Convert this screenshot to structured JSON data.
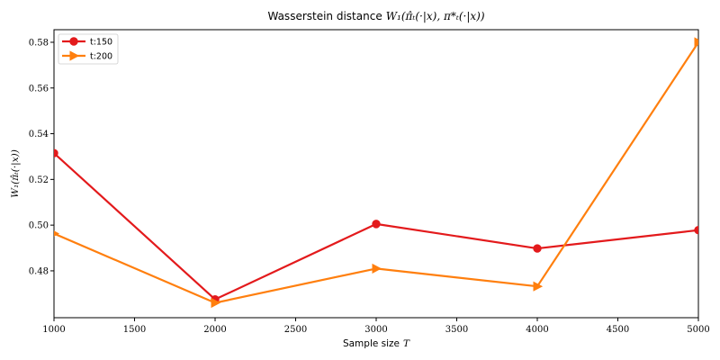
{
  "chart_data": {
    "type": "line",
    "title": "Wasserstein distance",
    "title_math": "W₁(π̂ₜ(·|x), π*ₜ(·|x))",
    "xlabel": "Sample size",
    "xlabel_math": "T",
    "ylabel": "W₁(π̂ₜ(·|x))",
    "x": [
      1000,
      2000,
      3000,
      4000,
      5000
    ],
    "xlim": [
      1000,
      5000
    ],
    "ylim": [
      0.4595,
      0.5855
    ],
    "xticks": [
      1000,
      1500,
      2000,
      2500,
      3000,
      3500,
      4000,
      4500,
      5000
    ],
    "yticks": [
      0.48,
      0.5,
      0.52,
      0.54,
      0.56,
      0.58
    ],
    "grid": false,
    "legend_position": "top-left",
    "series": [
      {
        "name": "t:150",
        "values": [
          0.5315,
          0.4675,
          0.5005,
          0.4898,
          0.4978
        ],
        "color": "#e31a1c",
        "marker": "circle"
      },
      {
        "name": "t:200",
        "values": [
          0.4963,
          0.466,
          0.481,
          0.4732,
          0.58
        ],
        "color": "#ff7f0e",
        "marker": "triangle-right"
      }
    ]
  }
}
